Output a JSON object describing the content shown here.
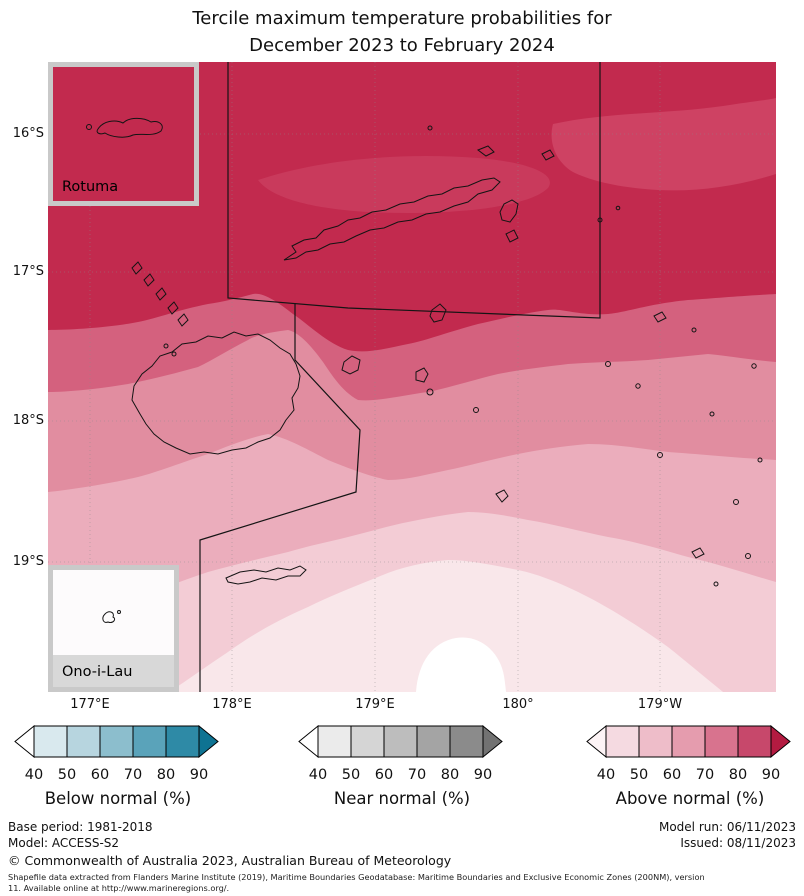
{
  "title": {
    "line1": "Tercile maximum temperature probabilities for",
    "line2": "December 2023 to February 2024"
  },
  "map": {
    "lat_labels": [
      "16°S",
      "17°S",
      "18°S",
      "19°S"
    ],
    "lon_labels": [
      "177°E",
      "178°E",
      "179°E",
      "180°",
      "179°W"
    ],
    "insets": {
      "rotuma_label": "Rotuma",
      "ono_i_lau_label": "Ono-i-Lau"
    },
    "colors": {
      "band_gt90": "#c22a4e",
      "band_80_90": "#ce4263",
      "band_top_center": "#c93a5c",
      "band_70_80": "#d4617e",
      "band_60_70": "#e18da0",
      "band_50_60": "#ebadbc",
      "band_40_50": "#f3ccd5",
      "band_lt40": "#f9e7ea",
      "white_region": "#ffffff",
      "coastline": "#141414",
      "boundary": "#141414",
      "graticule": "#8a8a8a"
    }
  },
  "legends": [
    {
      "label": "Below normal (%)",
      "ticks": [
        "40",
        "50",
        "60",
        "70",
        "80",
        "90"
      ],
      "tip_low": "#ffffff",
      "boxes": [
        "#d9e9ee",
        "#b7d5df",
        "#8cbecd",
        "#5aa3ba",
        "#2e8aa6"
      ],
      "tip_high": "#0e7392"
    },
    {
      "label": "Near normal (%)",
      "ticks": [
        "40",
        "50",
        "60",
        "70",
        "80",
        "90"
      ],
      "tip_low": "#ffffff",
      "boxes": [
        "#ebebeb",
        "#d5d5d5",
        "#bdbdbd",
        "#a4a4a4",
        "#8b8b8b"
      ],
      "tip_high": "#727272"
    },
    {
      "label": "Above normal (%)",
      "ticks": [
        "40",
        "50",
        "60",
        "70",
        "80",
        "90"
      ],
      "tip_low": "#fdf4f6",
      "boxes": [
        "#f5dae1",
        "#eebdc9",
        "#e59cae",
        "#d8738e",
        "#c7486b"
      ],
      "tip_high": "#b31b41"
    }
  ],
  "footer": {
    "base_period": "Base period: 1981-2018",
    "model": "Model: ACCESS-S2",
    "model_run": "Model run: 06/11/2023",
    "issued": "Issued: 08/11/2023",
    "copyright": "© Commonwealth of Australia 2023, Australian Bureau of Meteorology",
    "fineprint_line1": "Shapefile data extracted from Flanders Marine Institute (2019), Maritime Boundaries Geodatabase: Maritime Boundaries and Exclusive Economic Zones (200NM), version",
    "fineprint_line2": "11. Available online at http://www.marineregions.org/."
  }
}
